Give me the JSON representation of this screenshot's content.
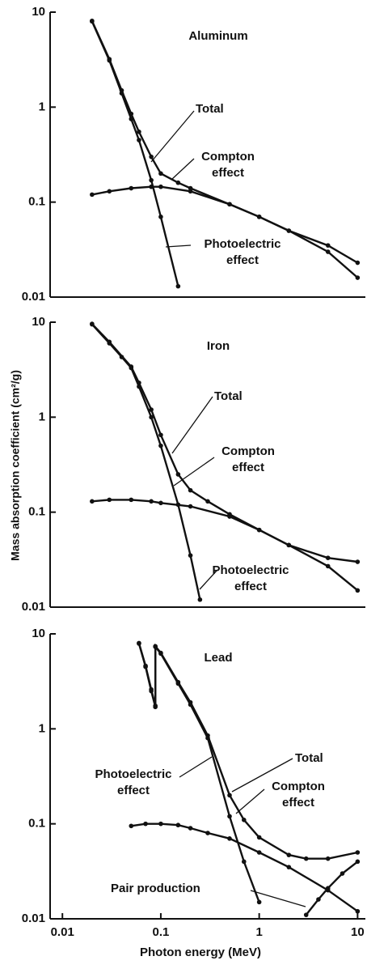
{
  "chart_data": [
    {
      "type": "line",
      "title": "Aluminum",
      "log_x": true,
      "log_y": true,
      "xlim": [
        0.0075,
        12
      ],
      "ylim": [
        0.01,
        10
      ],
      "yticks": [
        0.01,
        0.1,
        1,
        10
      ],
      "series": [
        {
          "name": "Total",
          "color": "#111111",
          "x": [
            0.02,
            0.03,
            0.04,
            0.05,
            0.06,
            0.08,
            0.1,
            0.15,
            0.2,
            0.5,
            1,
            2,
            5,
            10
          ],
          "values": [
            8.1,
            3.2,
            1.5,
            0.85,
            0.55,
            0.3,
            0.2,
            0.16,
            0.14,
            0.095,
            0.07,
            0.05,
            0.035,
            0.023
          ]
        },
        {
          "name": "Compton effect",
          "color": "#111111",
          "x": [
            0.02,
            0.03,
            0.05,
            0.08,
            0.1,
            0.2,
            0.5,
            1,
            2,
            5,
            10
          ],
          "values": [
            0.12,
            0.13,
            0.14,
            0.145,
            0.145,
            0.13,
            0.095,
            0.07,
            0.05,
            0.03,
            0.016
          ]
        },
        {
          "name": "Photoelectric effect",
          "color": "#111111",
          "x": [
            0.02,
            0.03,
            0.04,
            0.05,
            0.06,
            0.08,
            0.1,
            0.15
          ],
          "values": [
            8,
            3.1,
            1.4,
            0.75,
            0.45,
            0.17,
            0.07,
            0.013
          ]
        }
      ]
    },
    {
      "type": "line",
      "title": "Iron",
      "ylabel": "Mass absorption coefficient (cm²/g)",
      "log_x": true,
      "log_y": true,
      "xlim": [
        0.0075,
        12
      ],
      "ylim": [
        0.01,
        10
      ],
      "yticks": [
        0.01,
        0.1,
        1,
        10
      ],
      "series": [
        {
          "name": "Total",
          "color": "#111111",
          "x": [
            0.02,
            0.03,
            0.05,
            0.06,
            0.08,
            0.1,
            0.15,
            0.2,
            0.3,
            0.5,
            1,
            2,
            5,
            10
          ],
          "values": [
            9.6,
            6.2,
            3.4,
            2.3,
            1.2,
            0.65,
            0.25,
            0.17,
            0.13,
            0.095,
            0.065,
            0.045,
            0.033,
            0.03
          ]
        },
        {
          "name": "Compton effect",
          "color": "#111111",
          "x": [
            0.02,
            0.03,
            0.05,
            0.08,
            0.1,
            0.2,
            0.5,
            1,
            2,
            5,
            10
          ],
          "values": [
            0.13,
            0.135,
            0.135,
            0.13,
            0.125,
            0.115,
            0.09,
            0.065,
            0.045,
            0.027,
            0.015
          ]
        },
        {
          "name": "Photoelectric effect",
          "color": "#111111",
          "x": [
            0.02,
            0.03,
            0.04,
            0.05,
            0.06,
            0.08,
            0.1,
            0.15,
            0.2,
            0.25
          ],
          "values": [
            9.5,
            6,
            4.3,
            3.3,
            2.1,
            1.0,
            0.5,
            0.12,
            0.035,
            0.012
          ]
        }
      ]
    },
    {
      "type": "line",
      "title": "Lead",
      "xlabel": "Photon energy (MeV)",
      "log_x": true,
      "log_y": true,
      "xlim": [
        0.0075,
        12
      ],
      "ylim": [
        0.01,
        10
      ],
      "xticks": [
        0.01,
        0.1,
        1,
        10
      ],
      "yticks": [
        0.01,
        0.1,
        1,
        10
      ],
      "series": [
        {
          "name": "Total",
          "color": "#111111",
          "x": [
            0.06,
            0.07,
            0.08,
            0.088,
            0.088,
            0.1,
            0.15,
            0.2,
            0.3,
            0.5,
            0.7,
            1,
            2,
            3,
            5,
            10
          ],
          "values": [
            8,
            4.6,
            2.6,
            1.75,
            7.4,
            6.3,
            3.1,
            1.9,
            0.85,
            0.2,
            0.11,
            0.072,
            0.047,
            0.043,
            0.043,
            0.05
          ]
        },
        {
          "name": "Compton effect",
          "color": "#111111",
          "x": [
            0.05,
            0.07,
            0.1,
            0.15,
            0.2,
            0.3,
            0.5,
            1,
            2,
            5,
            10
          ],
          "values": [
            0.095,
            0.1,
            0.1,
            0.097,
            0.09,
            0.08,
            0.07,
            0.05,
            0.035,
            0.02,
            0.012
          ]
        },
        {
          "name": "Photoelectric effect",
          "color": "#111111",
          "x": [
            0.06,
            0.07,
            0.08,
            0.088,
            0.088,
            0.1,
            0.15,
            0.2,
            0.3,
            0.5,
            0.7,
            1
          ],
          "values": [
            7.9,
            4.5,
            2.5,
            1.7,
            7.3,
            6.2,
            3.0,
            1.8,
            0.8,
            0.12,
            0.04,
            0.015
          ]
        },
        {
          "name": "Pair production",
          "color": "#111111",
          "x": [
            3,
            4,
            5,
            7,
            10
          ],
          "values": [
            0.011,
            0.016,
            0.021,
            0.03,
            0.04
          ]
        }
      ]
    }
  ]
}
